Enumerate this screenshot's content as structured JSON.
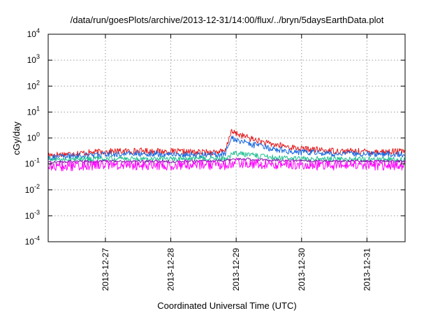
{
  "chart_data": {
    "type": "line",
    "title": "/data/run/goesPlots/archive/2013-12-31/14:00/flux/../bryn/5daysEarthData.plot",
    "xlabel": "Coordinated Universal Time (UTC)",
    "ylabel": "cGy/day",
    "yscale": "log",
    "ylim": [
      0.0001,
      10000
    ],
    "xlim": [
      "2013-12-26 03:00",
      "2013-12-31 14:00"
    ],
    "grid": true,
    "legend": "none",
    "x_ticks": [
      {
        "value": "2013-12-27 00:00",
        "label": "2013-12-27"
      },
      {
        "value": "2013-12-28 00:00",
        "label": "2013-12-28"
      },
      {
        "value": "2013-12-29 00:00",
        "label": "2013-12-29"
      },
      {
        "value": "2013-12-30 00:00",
        "label": "2013-12-30"
      },
      {
        "value": "2013-12-31 00:00",
        "label": "2013-12-31"
      }
    ],
    "y_ticks": [
      {
        "value": 0.0001,
        "base": "10",
        "exp": "-4"
      },
      {
        "value": 0.001,
        "base": "10",
        "exp": "-3"
      },
      {
        "value": 0.01,
        "base": "10",
        "exp": "-2"
      },
      {
        "value": 0.1,
        "base": "10",
        "exp": "-1"
      },
      {
        "value": 1,
        "base": "10",
        "exp": "0"
      },
      {
        "value": 10,
        "base": "10",
        "exp": "1"
      },
      {
        "value": 100,
        "base": "10",
        "exp": "2"
      },
      {
        "value": 1000,
        "base": "10",
        "exp": "3"
      },
      {
        "value": 10000,
        "base": "10",
        "exp": "4"
      }
    ],
    "series": [
      {
        "color": "#e41a1c",
        "x": [
          "2013-12-26 03:00",
          "2013-12-26 12:00",
          "2013-12-27 00:00",
          "2013-12-27 12:00",
          "2013-12-28 00:00",
          "2013-12-28 12:00",
          "2013-12-28 20:00",
          "2013-12-28 22:00",
          "2013-12-29 00:00",
          "2013-12-29 06:00",
          "2013-12-29 12:00",
          "2013-12-30 00:00",
          "2013-12-30 12:00",
          "2013-12-31 00:00",
          "2013-12-31 14:00"
        ],
        "y": [
          0.22,
          0.25,
          0.3,
          0.32,
          0.3,
          0.28,
          0.3,
          1.7,
          1.5,
          0.9,
          0.6,
          0.38,
          0.32,
          0.3,
          0.3
        ],
        "noise": 0.12
      },
      {
        "color": "#1565e0",
        "x": [
          "2013-12-26 03:00",
          "2013-12-26 12:00",
          "2013-12-27 00:00",
          "2013-12-27 12:00",
          "2013-12-28 00:00",
          "2013-12-28 12:00",
          "2013-12-28 20:00",
          "2013-12-28 22:00",
          "2013-12-29 00:00",
          "2013-12-29 06:00",
          "2013-12-29 12:00",
          "2013-12-30 00:00",
          "2013-12-30 12:00",
          "2013-12-31 00:00",
          "2013-12-31 14:00"
        ],
        "y": [
          0.18,
          0.2,
          0.23,
          0.25,
          0.24,
          0.22,
          0.24,
          1.0,
          0.85,
          0.55,
          0.4,
          0.28,
          0.25,
          0.24,
          0.24
        ],
        "noise": 0.12
      },
      {
        "color": "#1fbf8f",
        "x": [
          "2013-12-26 03:00",
          "2013-12-27 00:00",
          "2013-12-28 00:00",
          "2013-12-28 20:00",
          "2013-12-28 23:00",
          "2013-12-29 06:00",
          "2013-12-29 12:00",
          "2013-12-30 00:00",
          "2013-12-31 00:00",
          "2013-12-31 14:00"
        ],
        "y": [
          0.15,
          0.16,
          0.16,
          0.16,
          0.25,
          0.22,
          0.18,
          0.16,
          0.15,
          0.15
        ],
        "noise": 0.1
      },
      {
        "color": "#7b1fa2",
        "x": [
          "2013-12-26 03:00",
          "2013-12-27 00:00",
          "2013-12-28 00:00",
          "2013-12-28 20:00",
          "2013-12-29 00:00",
          "2013-12-29 12:00",
          "2013-12-30 00:00",
          "2013-12-31 14:00"
        ],
        "y": [
          0.12,
          0.125,
          0.125,
          0.13,
          0.16,
          0.14,
          0.13,
          0.125
        ],
        "noise": 0.05
      },
      {
        "color": "#ff00ff",
        "x": [
          "2013-12-26 03:00",
          "2013-12-27 00:00",
          "2013-12-28 00:00",
          "2013-12-28 20:00",
          "2013-12-29 00:00",
          "2013-12-29 12:00",
          "2013-12-30 00:00",
          "2013-12-31 14:00"
        ],
        "y": [
          0.08,
          0.09,
          0.09,
          0.09,
          0.11,
          0.1,
          0.09,
          0.09
        ],
        "noise": 0.2
      }
    ]
  }
}
